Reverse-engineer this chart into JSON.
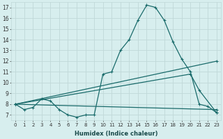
{
  "xlabel": "Humidex (Indice chaleur)",
  "bg_color": "#d7eeee",
  "grid_color": "#c0d8d8",
  "line_color": "#1a6b6b",
  "xlim": [
    -0.5,
    23.5
  ],
  "ylim": [
    6.5,
    17.5
  ],
  "xticks": [
    0,
    1,
    2,
    3,
    4,
    5,
    6,
    7,
    8,
    9,
    10,
    11,
    12,
    13,
    14,
    15,
    16,
    17,
    18,
    19,
    20,
    21,
    22,
    23
  ],
  "yticks": [
    7,
    8,
    9,
    10,
    11,
    12,
    13,
    14,
    15,
    16,
    17
  ],
  "line1_x": [
    0,
    1,
    2,
    3,
    4,
    5,
    6,
    7,
    8,
    9,
    10,
    11,
    12,
    13,
    14,
    15,
    16,
    17,
    18,
    19,
    20,
    21,
    22,
    23
  ],
  "line1_y": [
    8.0,
    7.5,
    7.7,
    8.5,
    8.3,
    7.5,
    7.0,
    6.8,
    7.0,
    7.0,
    10.8,
    11.0,
    13.0,
    14.0,
    15.8,
    17.2,
    17.0,
    15.8,
    13.8,
    12.2,
    11.0,
    8.0,
    7.8,
    7.2
  ],
  "line2_x": [
    0,
    23
  ],
  "line2_y": [
    8.0,
    12.0
  ],
  "line3_x": [
    0,
    20,
    21,
    23
  ],
  "line3_y": [
    8.0,
    10.8,
    9.3,
    7.2
  ],
  "line4_x": [
    0,
    23
  ],
  "line4_y": [
    8.0,
    7.5
  ]
}
